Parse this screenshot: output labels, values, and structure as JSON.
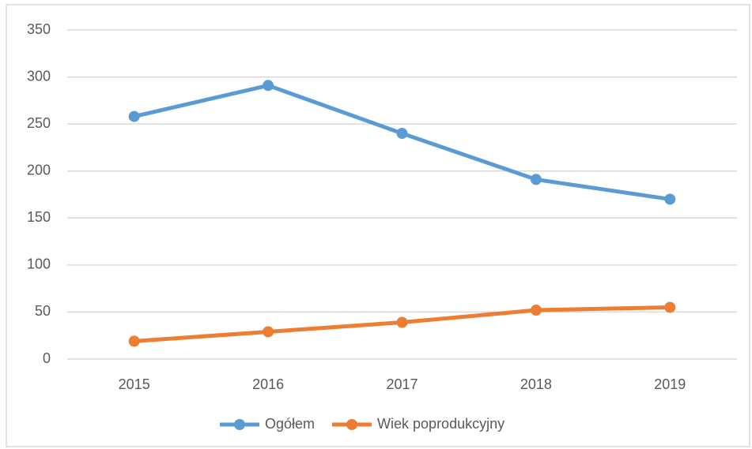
{
  "chart_data": {
    "type": "line",
    "categories": [
      "2015",
      "2016",
      "2017",
      "2018",
      "2019"
    ],
    "series": [
      {
        "name": "Ogółem",
        "color": "#5b9bd5",
        "values": [
          258,
          291,
          240,
          191,
          170
        ]
      },
      {
        "name": "Wiek poprodukcyjny",
        "color": "#ed7d31",
        "values": [
          19,
          29,
          39,
          52,
          55
        ]
      }
    ],
    "ylim": [
      0,
      350
    ],
    "yticks": [
      0,
      50,
      100,
      150,
      200,
      250,
      300,
      350
    ],
    "grid": true,
    "legend": "bottom"
  }
}
